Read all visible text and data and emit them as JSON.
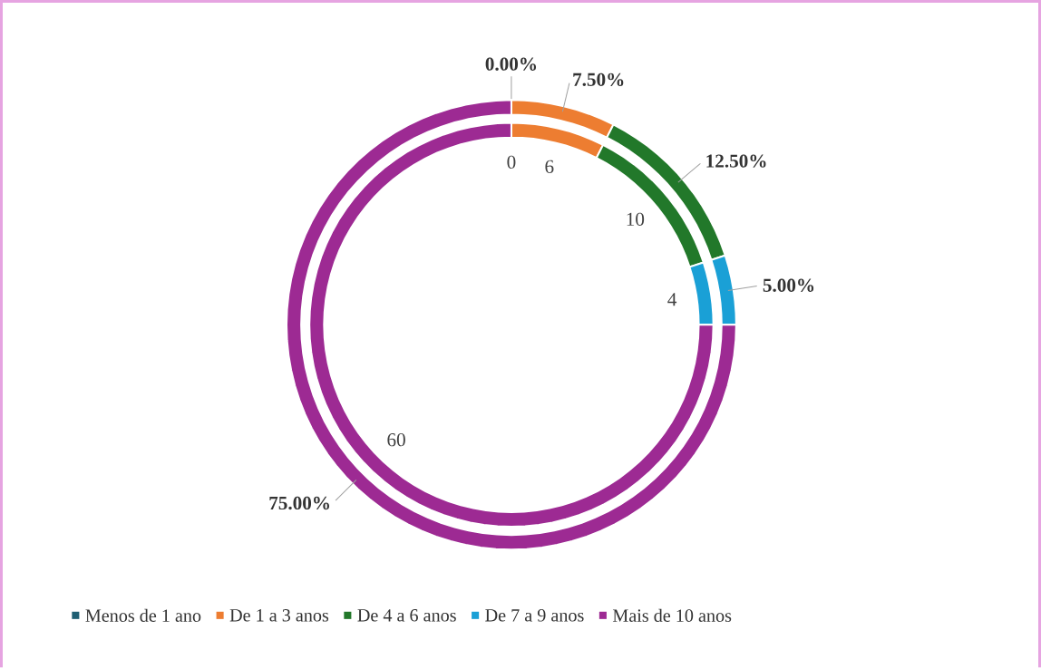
{
  "chart_data": [
    {
      "type": "donut",
      "categories": [
        "Menos de 1 ano",
        "De 1 a 3 anos",
        "De 4 a 6 anos",
        "De 7 a 9 anos",
        "Mais de 10 anos"
      ],
      "values": [
        0,
        7.5,
        12.5,
        5,
        75
      ],
      "value_labels": [
        "0.00%",
        "7.50%",
        "12.50%",
        "5.00%",
        "75.00%"
      ],
      "colors": [
        "#1f5f73",
        "#ed7d31",
        "#22782a",
        "#1aa0d6",
        "#9d2a93"
      ],
      "legend": "bottom"
    },
    {
      "type": "donut",
      "categories": [
        null,
        null,
        null,
        null,
        null
      ],
      "values": [
        0,
        6,
        10,
        4,
        60
      ],
      "value_labels": [
        "0",
        "6",
        "10",
        "4",
        "60"
      ],
      "colors": [
        "#1f5f73",
        "#ed7d31",
        "#22782a",
        "#1aa0d6",
        "#9d2a93"
      ]
    }
  ]
}
